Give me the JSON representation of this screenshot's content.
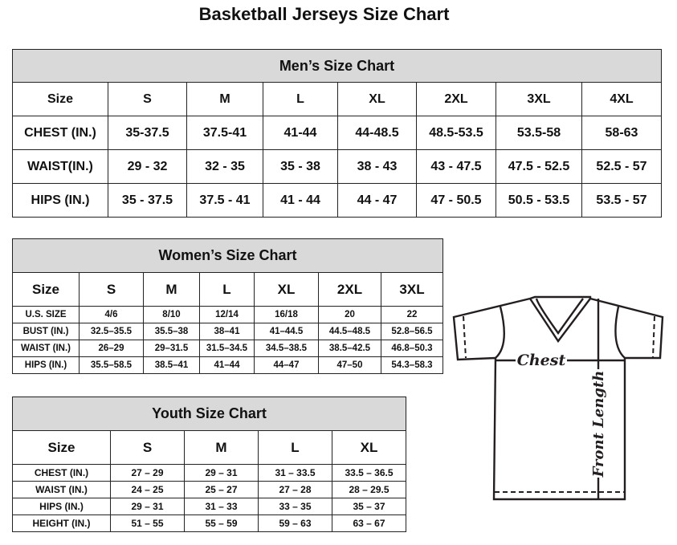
{
  "title": "Basketball Jerseys Size Chart",
  "men": {
    "title": "Men’s Size Chart",
    "header": [
      "Size",
      "S",
      "M",
      "L",
      "XL",
      "2XL",
      "3XL",
      "4XL"
    ],
    "rows": [
      [
        "CHEST (IN.)",
        "35-37.5",
        "37.5-41",
        "41-44",
        "44-48.5",
        "48.5-53.5",
        "53.5-58",
        "58-63"
      ],
      [
        "WAIST(IN.)",
        "29 - 32",
        "32 - 35",
        "35 - 38",
        "38 - 43",
        "43 - 47.5",
        "47.5 - 52.5",
        "52.5 - 57"
      ],
      [
        "HIPS (IN.)",
        "35 - 37.5",
        "37.5 - 41",
        "41 - 44",
        "44 - 47",
        "47 - 50.5",
        "50.5 - 53.5",
        "53.5 - 57"
      ]
    ]
  },
  "women": {
    "title": "Women’s Size Chart",
    "header": [
      "Size",
      "S",
      "M",
      "L",
      "XL",
      "2XL",
      "3XL"
    ],
    "rows": [
      [
        "U.S.  SIZE",
        "4/6",
        "8/10",
        "12/14",
        "16/18",
        "20",
        "22"
      ],
      [
        "BUST  (IN.)",
        "32.5–35.5",
        "35.5–38",
        "38–41",
        "41–44.5",
        "44.5–48.5",
        "52.8–56.5"
      ],
      [
        "WAIST  (IN.)",
        "26–29",
        "29–31.5",
        "31.5–34.5",
        "34.5–38.5",
        "38.5–42.5",
        "46.8–50.3"
      ],
      [
        "HIPS  (IN.)",
        "35.5–58.5",
        "38.5–41",
        "41–44",
        "44–47",
        "47–50",
        "54.3–58.3"
      ]
    ]
  },
  "youth": {
    "title": "Youth Size Chart",
    "header": [
      "Size",
      "S",
      "M",
      "L",
      "XL"
    ],
    "rows": [
      [
        "CHEST  (IN.)",
        "27  –  29",
        "29  –  31",
        "31  –  33.5",
        "33.5  –  36.5"
      ],
      [
        "WAIST  (IN.)",
        "24  –  25",
        "25  –  27",
        "27  –  28",
        "28  –  29.5"
      ],
      [
        "HIPS  (IN.)",
        "29  –  31",
        "31  –  33",
        "33  –  35",
        "35  –  37"
      ],
      [
        "HEIGHT  (IN.)",
        "51  –  55",
        "55  –  59",
        "59  –  63",
        "63  –  67"
      ]
    ]
  },
  "diagram": {
    "chest_label": "Chest",
    "length_label": "Front Length",
    "icon": "jersey-outline-icon"
  }
}
